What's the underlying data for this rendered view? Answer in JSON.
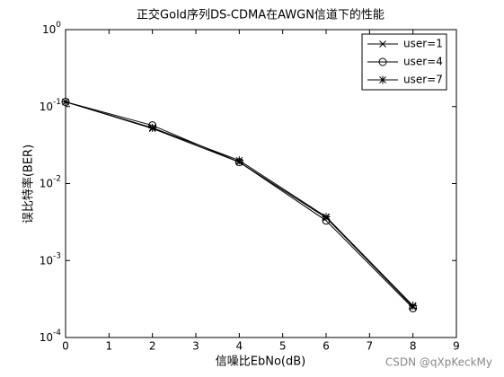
{
  "chart_data": {
    "type": "line",
    "title": "正交Gold序列DS-CDMA在AWGN信道下的性能",
    "x_label": "信噪比EbNo(dB)",
    "y_label": "误比特率(BER)",
    "x": [
      0,
      2,
      4,
      6,
      8
    ],
    "series": [
      {
        "name": "user=1",
        "color": "#000000",
        "marker": "x",
        "values": [
          0.115,
          0.052,
          0.019,
          0.0036,
          0.00025
        ]
      },
      {
        "name": "user=4",
        "color": "#000000",
        "marker": "o",
        "values": [
          0.115,
          0.057,
          0.019,
          0.0033,
          0.00024
        ]
      },
      {
        "name": "user=7",
        "color": "#000000",
        "marker": "*",
        "values": [
          0.115,
          0.053,
          0.02,
          0.0037,
          0.00026
        ]
      }
    ],
    "xlim": [
      0,
      9
    ],
    "xticks": [
      0,
      1,
      2,
      3,
      4,
      5,
      6,
      7,
      8,
      9
    ],
    "ylim": [
      0.0001,
      1
    ],
    "log_y": true,
    "yticks": [
      {
        "value": 0.0001,
        "label": "10^-4"
      },
      {
        "value": 0.001,
        "label": "10^-3"
      },
      {
        "value": 0.01,
        "label": "10^-2"
      },
      {
        "value": 0.1,
        "label": "10^-1"
      },
      {
        "value": 1,
        "label": "10^0"
      }
    ],
    "grid": false,
    "legend": "upper right"
  },
  "watermark": "CSDN @qXpKeckMy"
}
